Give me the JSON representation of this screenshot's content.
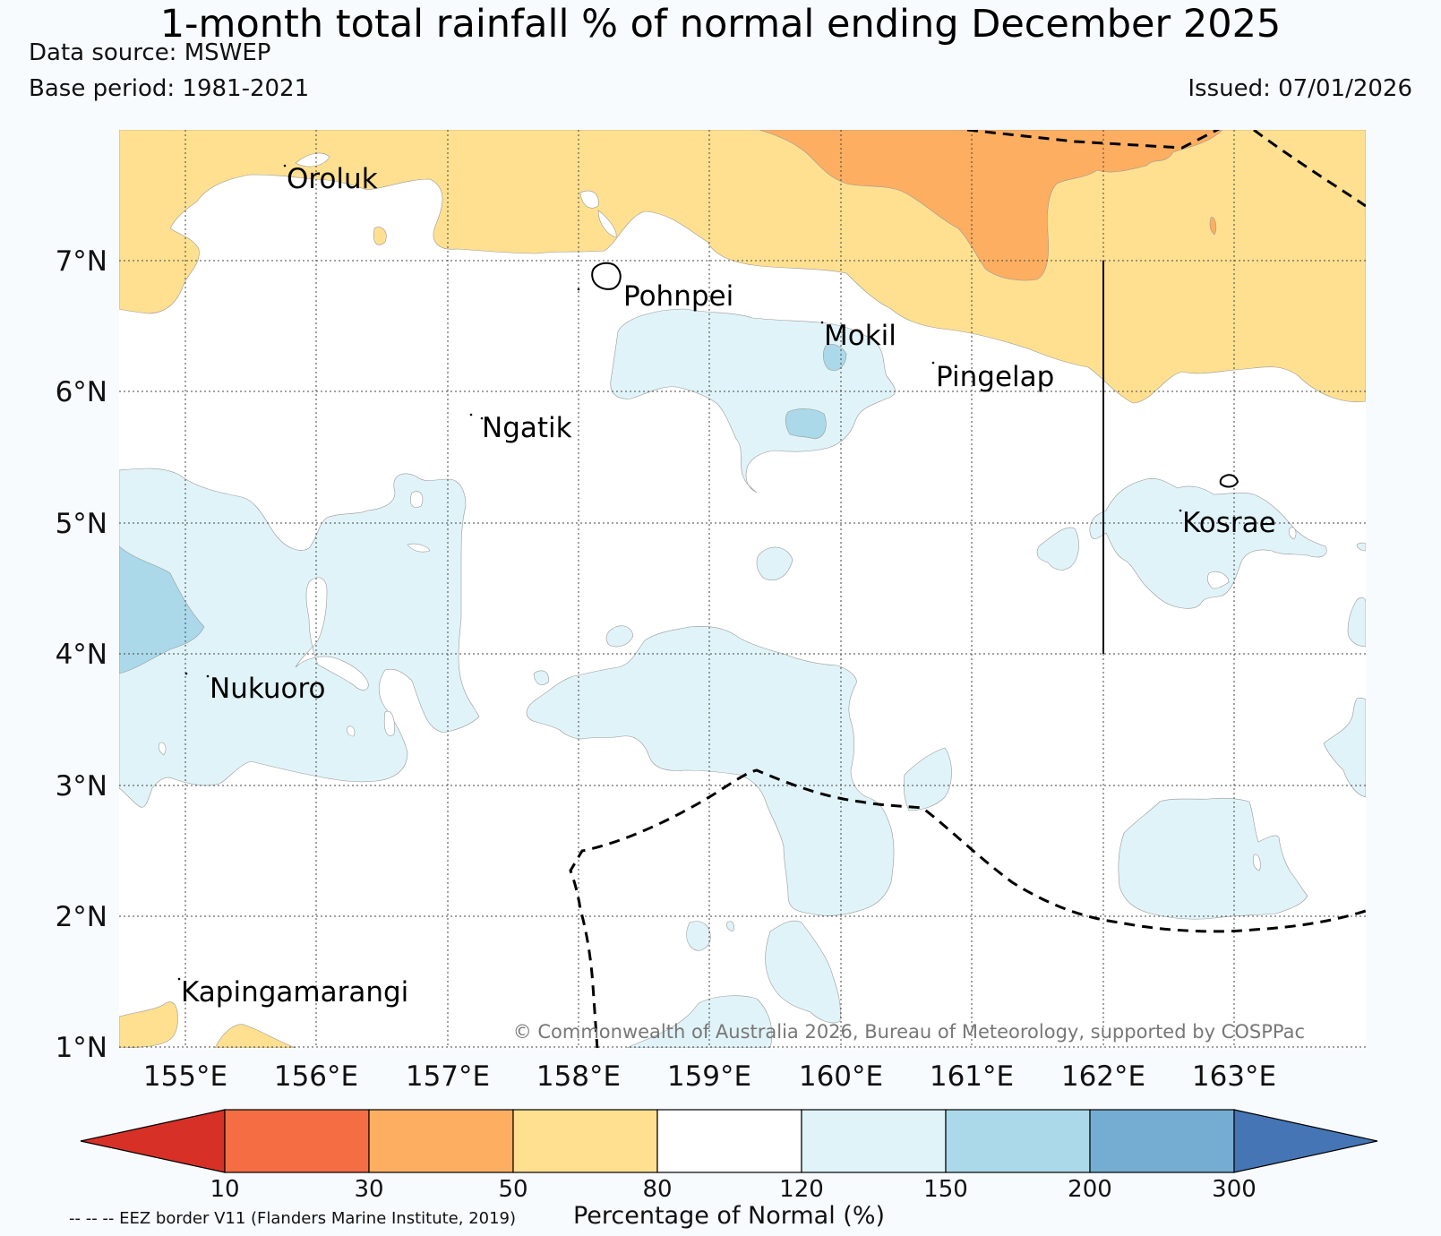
{
  "header": {
    "title": "1-month total rainfall % of normal ending December 2025",
    "data_source": "Data source: MSWEP",
    "base_period": "Base period: 1981-2021",
    "issued": "Issued: 07/01/2026"
  },
  "map": {
    "lon_range": [
      154.5,
      164.0
    ],
    "lat_range": [
      1.0,
      8.0
    ],
    "lat_labels": [
      "7°N",
      "6°N",
      "5°N",
      "4°N",
      "3°N",
      "2°N",
      "1°N"
    ],
    "lon_labels": [
      "155°E",
      "156°E",
      "157°E",
      "158°E",
      "159°E",
      "160°E",
      "161°E",
      "162°E",
      "163°E"
    ],
    "places": [
      {
        "name": "Oroluk",
        "lon": 155.8,
        "lat": 7.7
      },
      {
        "name": "Pohnpei",
        "lon": 158.2,
        "lat": 6.85
      },
      {
        "name": "Mokil",
        "lon": 159.8,
        "lat": 6.65
      },
      {
        "name": "Pingelap",
        "lon": 160.7,
        "lat": 6.2
      },
      {
        "name": "Ngatik",
        "lon": 157.3,
        "lat": 5.8
      },
      {
        "name": "Kosrae",
        "lon": 163.0,
        "lat": 5.3
      },
      {
        "name": "Nukuoro",
        "lon": 154.8,
        "lat": 3.85
      },
      {
        "name": "Kapingamarangi",
        "lon": 154.8,
        "lat": 1.5
      }
    ],
    "copyright": "© Commonwealth of Australia 2026, Bureau of Meteorology, supported by COSPPac"
  },
  "colorbar": {
    "title": "Percentage of Normal (%)",
    "ticks": [
      "10",
      "30",
      "50",
      "80",
      "120",
      "150",
      "200",
      "300"
    ],
    "colors": {
      "below_10": "#d73027",
      "c10_30": "#f46d43",
      "c30_50": "#fdae61",
      "c50_80": "#fee090",
      "c80_120": "#ffffff",
      "c120_150": "#e0f3f8",
      "c150_200": "#abd9e9",
      "c200_300": "#74add1",
      "above_300": "#4575b4"
    }
  },
  "footer": {
    "eez_note": "-- -- -- EEZ border V11 (Flanders Marine Institute, 2019)"
  }
}
